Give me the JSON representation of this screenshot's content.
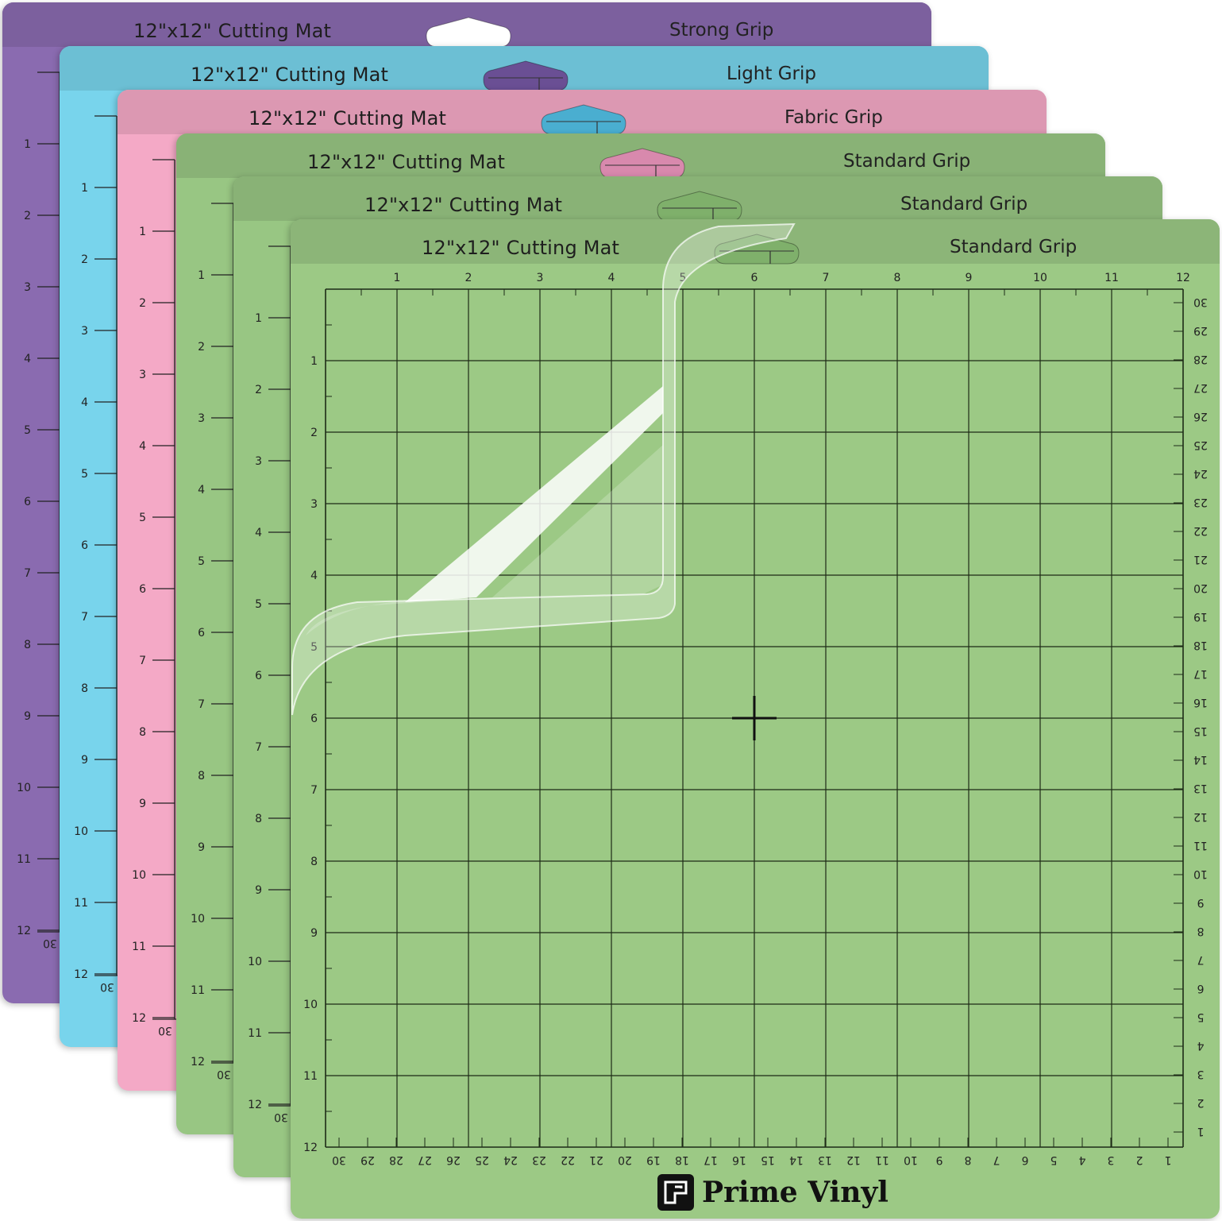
{
  "mats": [
    {
      "title": "12\"x12\" Cutting Mat",
      "grip": "Strong Grip",
      "color": "#8a6bb0"
    },
    {
      "title": "12\"x12\" Cutting Mat",
      "grip": "Light Grip",
      "color": "#78d4ec"
    },
    {
      "title": "12\"x12\" Cutting Mat",
      "grip": "Fabric Grip",
      "color": "#f4a9c6"
    },
    {
      "title": "12\"x12\" Cutting Mat",
      "grip": "Standard Grip",
      "color": "#98c683"
    },
    {
      "title": "12\"x12\" Cutting Mat",
      "grip": "Standard Grip",
      "color": "#98c683"
    },
    {
      "title": "12\"x12\" Cutting Mat",
      "grip": "Standard Grip",
      "color": "#9cc985"
    }
  ],
  "inch_labels": [
    "1",
    "2",
    "3",
    "4",
    "5",
    "6",
    "7",
    "8",
    "9",
    "10",
    "11",
    "12"
  ],
  "cm_labels": [
    "30",
    "29",
    "28",
    "27",
    "26",
    "25",
    "24",
    "23",
    "22",
    "21",
    "20",
    "19",
    "18",
    "17",
    "16",
    "15",
    "14",
    "13",
    "12",
    "11",
    "10",
    "9",
    "8",
    "7",
    "6",
    "5",
    "4",
    "3",
    "2",
    "1"
  ],
  "back_mat_cm_label": "30",
  "brand": {
    "name": "Prime Vinyl",
    "icon": "prime-vinyl-logo-icon"
  }
}
